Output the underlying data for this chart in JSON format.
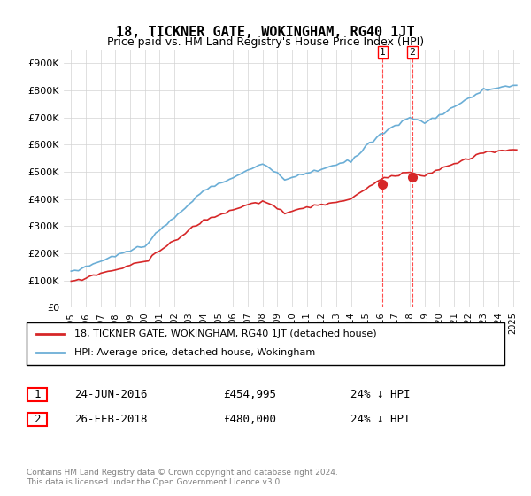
{
  "title": "18, TICKNER GATE, WOKINGHAM, RG40 1JT",
  "subtitle": "Price paid vs. HM Land Registry's House Price Index (HPI)",
  "ylim": [
    0,
    950000
  ],
  "yticks": [
    0,
    100000,
    200000,
    300000,
    400000,
    500000,
    600000,
    700000,
    800000,
    900000
  ],
  "ytick_labels": [
    "£0",
    "£100K",
    "£200K",
    "£300K",
    "£400K",
    "£500K",
    "£600K",
    "£700K",
    "£800K",
    "£900K"
  ],
  "hpi_color": "#6baed6",
  "price_color": "#d62728",
  "marker_color_1": "#d62728",
  "marker_color_2": "#d62728",
  "legend_box_color": "#000000",
  "sale1_date": "24-JUN-2016",
  "sale1_price": "£454,995",
  "sale1_note": "24% ↓ HPI",
  "sale2_date": "26-FEB-2018",
  "sale2_price": "£480,000",
  "sale2_note": "24% ↓ HPI",
  "footer": "Contains HM Land Registry data © Crown copyright and database right 2024.\nThis data is licensed under the Open Government Licence v3.0.",
  "legend_label_red": "18, TICKNER GATE, WOKINGHAM, RG40 1JT (detached house)",
  "legend_label_blue": "HPI: Average price, detached house, Wokingham"
}
